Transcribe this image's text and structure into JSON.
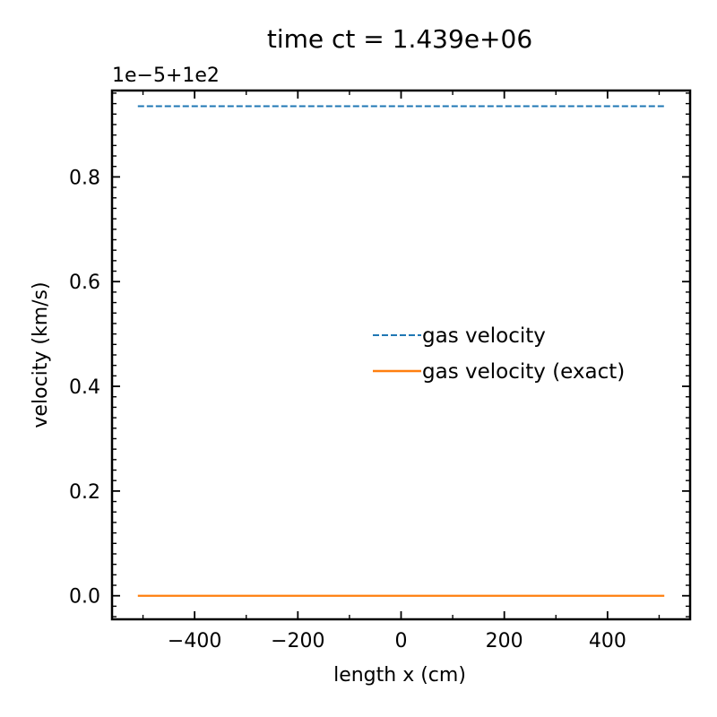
{
  "chart_data": {
    "type": "line",
    "title": "time ct = 1.439e+06",
    "xlabel": "length x (cm)",
    "ylabel": "velocity (km/s)",
    "y_offset_label": "1e−5+1e2",
    "xlim": [
      -560,
      560
    ],
    "ylim": [
      -0.045,
      0.965
    ],
    "xticks": [
      -400,
      -200,
      0,
      200,
      400
    ],
    "xtick_labels": [
      "−400",
      "−200",
      "0",
      "200",
      "400"
    ],
    "yticks": [
      0.0,
      0.2,
      0.4,
      0.6,
      0.8
    ],
    "ytick_labels": [
      "0.0",
      "0.2",
      "0.4",
      "0.6",
      "0.8"
    ],
    "grid": false,
    "ticks_direction": "in",
    "ticks_mirrored": true,
    "legend_position": "center-right",
    "series": [
      {
        "name": "gas velocity",
        "color": "#1f77b4",
        "style": "dashed",
        "x": [
          -510,
          510
        ],
        "y": [
          0.935,
          0.935
        ]
      },
      {
        "name": "gas velocity (exact)",
        "color": "#ff7f0e",
        "style": "solid",
        "x": [
          -510,
          510
        ],
        "y": [
          0.0,
          0.0
        ]
      }
    ]
  }
}
